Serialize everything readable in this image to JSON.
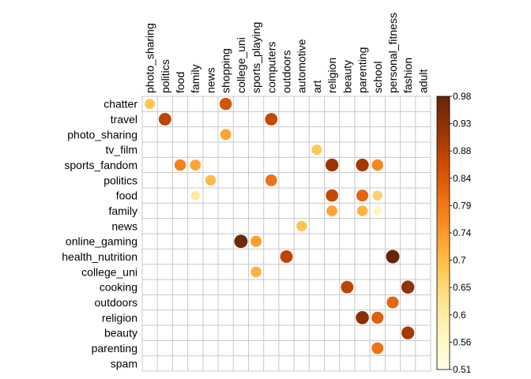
{
  "chart_data": {
    "type": "heatmap",
    "marker": "circle",
    "grid": true,
    "legend": "colorbar-right",
    "title": "",
    "xlabel": "",
    "ylabel": "",
    "columns": [
      "photo_sharing",
      "politics",
      "food",
      "family",
      "news",
      "shopping",
      "college_uni",
      "sports_playing",
      "computers",
      "outdoors",
      "automotive",
      "art",
      "religion",
      "beauty",
      "parenting",
      "school",
      "personal_fitness",
      "fashion",
      "adult"
    ],
    "rows": [
      "chatter",
      "travel",
      "photo_sharing",
      "tv_film",
      "sports_fandom",
      "politics",
      "food",
      "family",
      "news",
      "online_gaming",
      "health_nutrition",
      "college_uni",
      "cooking",
      "outdoors",
      "religion",
      "beauty",
      "parenting",
      "spam"
    ],
    "points": [
      {
        "row": "chatter",
        "col": "photo_sharing",
        "value": 0.68
      },
      {
        "row": "chatter",
        "col": "shopping",
        "value": 0.85
      },
      {
        "row": "travel",
        "col": "politics",
        "value": 0.88
      },
      {
        "row": "travel",
        "col": "computers",
        "value": 0.87
      },
      {
        "row": "photo_sharing",
        "col": "shopping",
        "value": 0.73
      },
      {
        "row": "tv_film",
        "col": "art",
        "value": 0.68
      },
      {
        "row": "sports_fandom",
        "col": "food",
        "value": 0.78
      },
      {
        "row": "sports_fandom",
        "col": "family",
        "value": 0.73
      },
      {
        "row": "sports_fandom",
        "col": "religion",
        "value": 0.92
      },
      {
        "row": "sports_fandom",
        "col": "parenting",
        "value": 0.91
      },
      {
        "row": "sports_fandom",
        "col": "school",
        "value": 0.77
      },
      {
        "row": "politics",
        "col": "news",
        "value": 0.7
      },
      {
        "row": "politics",
        "col": "computers",
        "value": 0.8
      },
      {
        "row": "food",
        "col": "family",
        "value": 0.61
      },
      {
        "row": "food",
        "col": "religion",
        "value": 0.87
      },
      {
        "row": "food",
        "col": "parenting",
        "value": 0.82
      },
      {
        "row": "food",
        "col": "school",
        "value": 0.66
      },
      {
        "row": "family",
        "col": "religion",
        "value": 0.73
      },
      {
        "row": "family",
        "col": "parenting",
        "value": 0.71
      },
      {
        "row": "family",
        "col": "school",
        "value": 0.57
      },
      {
        "row": "news",
        "col": "automotive",
        "value": 0.69
      },
      {
        "row": "online_gaming",
        "col": "college_uni",
        "value": 0.97
      },
      {
        "row": "online_gaming",
        "col": "sports_playing",
        "value": 0.74
      },
      {
        "row": "health_nutrition",
        "col": "outdoors",
        "value": 0.88
      },
      {
        "row": "health_nutrition",
        "col": "personal_fitness",
        "value": 0.98
      },
      {
        "row": "college_uni",
        "col": "sports_playing",
        "value": 0.71
      },
      {
        "row": "cooking",
        "col": "beauty",
        "value": 0.88
      },
      {
        "row": "cooking",
        "col": "fashion",
        "value": 0.93
      },
      {
        "row": "outdoors",
        "col": "personal_fitness",
        "value": 0.82
      },
      {
        "row": "religion",
        "col": "parenting",
        "value": 0.94
      },
      {
        "row": "religion",
        "col": "school",
        "value": 0.83
      },
      {
        "row": "beauty",
        "col": "fashion",
        "value": 0.91
      },
      {
        "row": "parenting",
        "col": "school",
        "value": 0.8
      }
    ],
    "colorbar": {
      "min": 0.51,
      "max": 0.98,
      "ticks": [
        "0.98",
        "0.93",
        "0.88",
        "0.84",
        "0.79",
        "0.74",
        "0.7",
        "0.65",
        "0.6",
        "0.56",
        "0.51"
      ],
      "colors": [
        "#ffffe5",
        "#fff7bc",
        "#fee391",
        "#fec44f",
        "#fe9929",
        "#ec7014",
        "#cc4c02",
        "#993404",
        "#662506"
      ]
    }
  }
}
